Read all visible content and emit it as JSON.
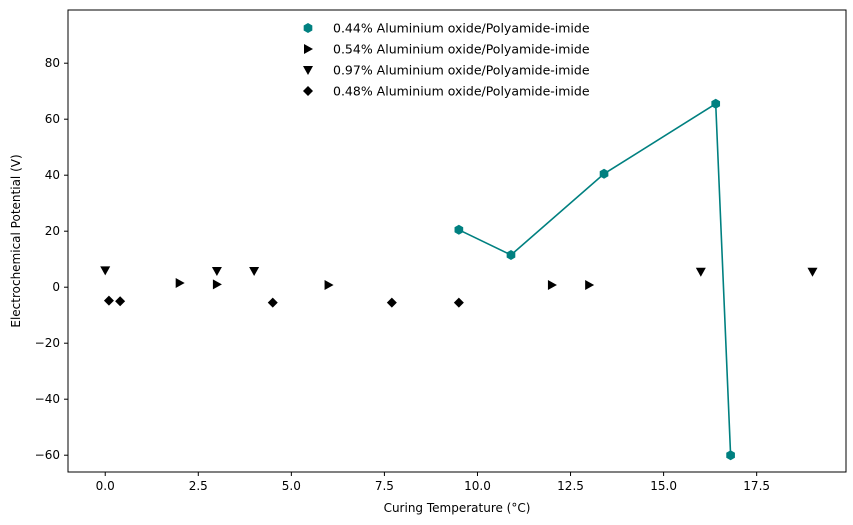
{
  "chart_data": {
    "type": "scatter",
    "xlabel": "Curing Temperature (°C)",
    "ylabel": "Electrochemical Potential (V)",
    "xlim": [
      -1.0,
      19.9
    ],
    "ylim": [
      -66,
      99
    ],
    "xticks": [
      0.0,
      2.5,
      5.0,
      7.5,
      10.0,
      12.5,
      15.0,
      17.5
    ],
    "xtick_labels": [
      "0.0",
      "2.5",
      "5.0",
      "7.5",
      "10.0",
      "12.5",
      "15.0",
      "17.5"
    ],
    "yticks": [
      -60,
      -40,
      -20,
      0,
      20,
      40,
      60,
      80
    ],
    "ytick_labels": [
      "−60",
      "−40",
      "−20",
      "0",
      "20",
      "40",
      "60",
      "80"
    ],
    "grid": false,
    "legend_position": "top-center",
    "series": [
      {
        "name": "0.44% Aluminium oxide/Polyamide-imide",
        "marker": "hexagon",
        "color": "#008080",
        "connected": true,
        "points": [
          [
            9.5,
            20.5
          ],
          [
            10.9,
            11.5
          ],
          [
            13.4,
            40.5
          ],
          [
            16.4,
            65.5
          ],
          [
            16.8,
            -60.0
          ]
        ]
      },
      {
        "name": "0.54% Aluminium oxide/Polyamide-imide",
        "marker": "triangle-right",
        "color": "#000000",
        "connected": false,
        "points": [
          [
            2.0,
            1.5
          ],
          [
            3.0,
            1.0
          ],
          [
            6.0,
            0.8
          ],
          [
            12.0,
            0.8
          ],
          [
            13.0,
            0.8
          ]
        ]
      },
      {
        "name": "0.97% Aluminium oxide/Polyamide-imide",
        "marker": "triangle-down",
        "color": "#000000",
        "connected": false,
        "points": [
          [
            0.0,
            6.0
          ],
          [
            3.0,
            5.8
          ],
          [
            4.0,
            5.8
          ],
          [
            16.0,
            5.5
          ],
          [
            19.0,
            5.5
          ]
        ]
      },
      {
        "name": "0.48% Aluminium oxide/Polyamide-imide",
        "marker": "diamond",
        "color": "#000000",
        "connected": false,
        "points": [
          [
            0.1,
            -4.8
          ],
          [
            0.4,
            -5.0
          ],
          [
            4.5,
            -5.5
          ],
          [
            7.7,
            -5.5
          ],
          [
            9.5,
            -5.5
          ]
        ]
      }
    ]
  }
}
